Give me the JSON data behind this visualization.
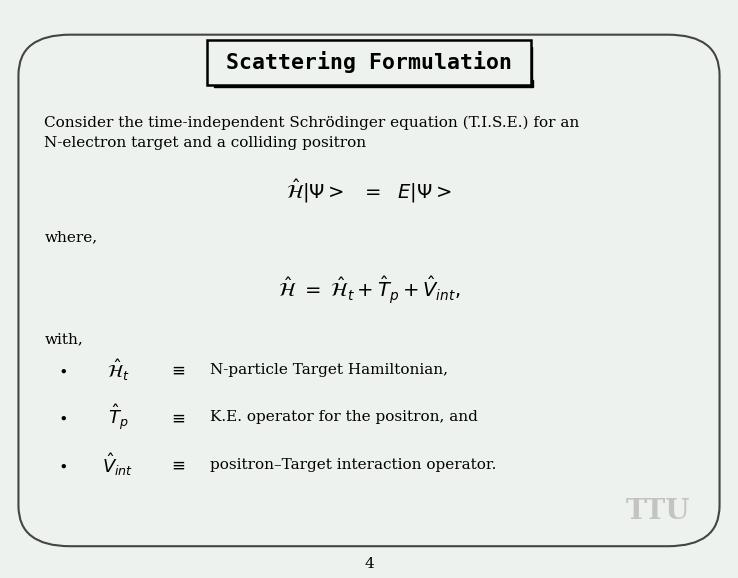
{
  "slide_bg": "#eef2ee",
  "border_color": "#444444",
  "title": "Scattering Formulation",
  "title_box_color": "#000000",
  "text_color": "#000000",
  "ttu_color": "#bbbbbb",
  "page_number": "4",
  "body_text_1a": "Consider the time-independent Schrödinger equation (T.I.S.E.) for an",
  "body_text_1b": "N-electron target and a colliding positron",
  "where_text": "where,",
  "with_text": "with,",
  "bullet1_text": "N-particle Target Hamiltonian,",
  "bullet2_text": "K.E. operator for the positron, and",
  "bullet3_text": "positron–Target interaction operator."
}
